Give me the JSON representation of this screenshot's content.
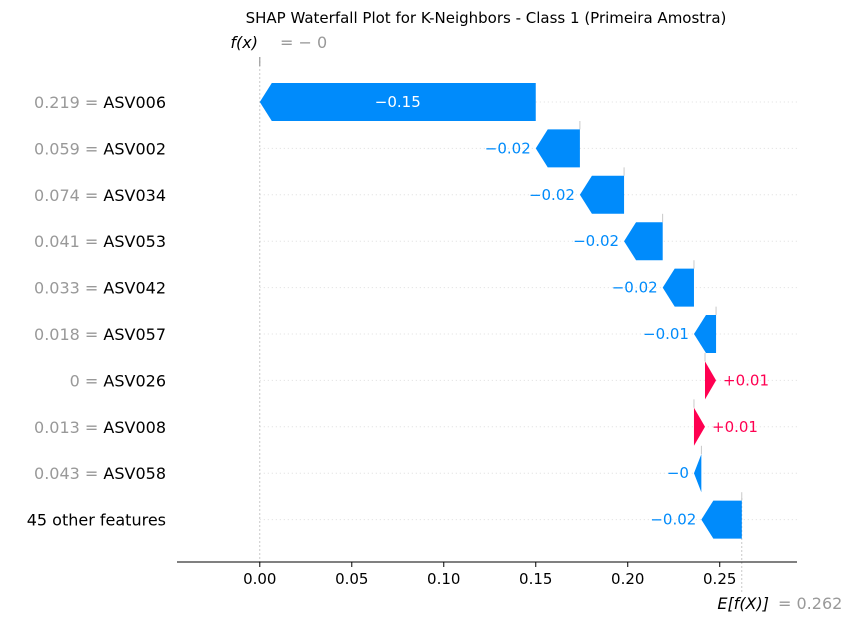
{
  "chart_data": {
    "type": "bar",
    "title": "SHAP Waterfall Plot for K-Neighbors - Class 1 (Primeira Amostra)",
    "fx_label": "f(x)",
    "fx_value_text": "= − 0",
    "ef_label": "E[f(X)]",
    "ef_value_text": "= 0.262",
    "base_value": 0.262,
    "xlim": [
      -0.045,
      0.292
    ],
    "x_ticks": [
      "0.00",
      "0.05",
      "0.10",
      "0.15",
      "0.20",
      "0.25"
    ],
    "x_tick_values": [
      0,
      0.05,
      0.1,
      0.15,
      0.2,
      0.25
    ],
    "colors": {
      "positive": "#ff0051",
      "negative": "#008bfb",
      "muted": "#999999"
    },
    "rows": [
      {
        "value": "0.219",
        "feature": "ASV006",
        "start": 0.15,
        "end": 0.0,
        "label": "−0.15"
      },
      {
        "value": "0.059",
        "feature": "ASV002",
        "start": 0.174,
        "end": 0.15,
        "label": "−0.02"
      },
      {
        "value": "0.074",
        "feature": "ASV034",
        "start": 0.198,
        "end": 0.174,
        "label": "−0.02"
      },
      {
        "value": "0.041",
        "feature": "ASV053",
        "start": 0.219,
        "end": 0.198,
        "label": "−0.02"
      },
      {
        "value": "0.033",
        "feature": "ASV042",
        "start": 0.236,
        "end": 0.219,
        "label": "−0.02"
      },
      {
        "value": "0.018",
        "feature": "ASV057",
        "start": 0.248,
        "end": 0.236,
        "label": "−0.01"
      },
      {
        "value": "0",
        "feature": "ASV026",
        "start": 0.242,
        "end": 0.248,
        "label": "+0.01"
      },
      {
        "value": "0.013",
        "feature": "ASV008",
        "start": 0.236,
        "end": 0.242,
        "label": "+0.01"
      },
      {
        "value": "0.043",
        "feature": "ASV058",
        "start": 0.24,
        "end": 0.236,
        "label": "−0"
      },
      {
        "value": "",
        "feature": "45 other features",
        "start": 0.262,
        "end": 0.24,
        "label": "−0.02"
      }
    ]
  }
}
